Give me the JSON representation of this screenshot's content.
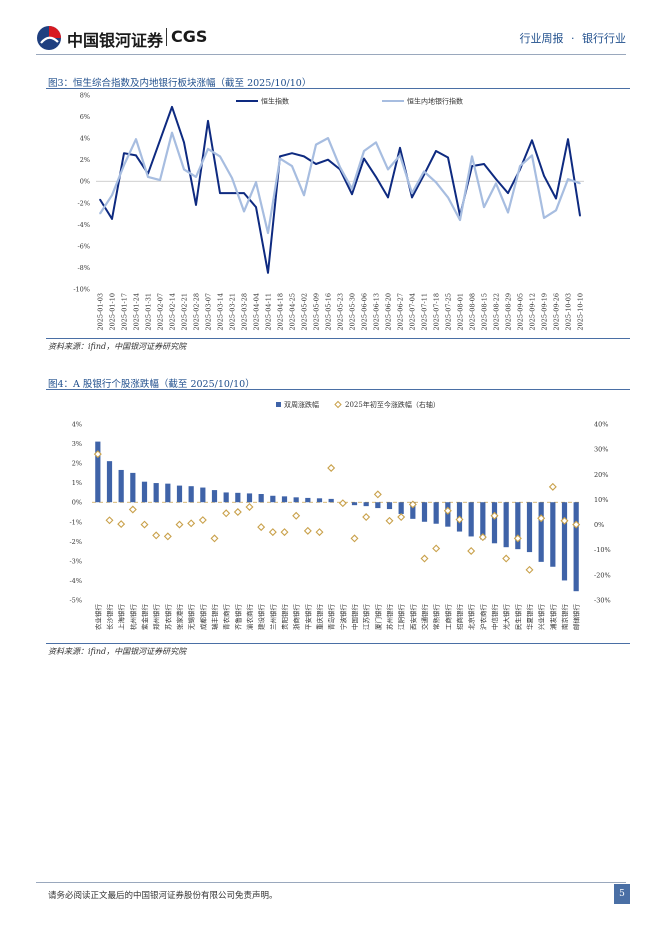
{
  "header": {
    "logo_cn": "中国银河证券",
    "logo_en": "CGS",
    "report_type": "行业周报",
    "separator": "·",
    "industry": "银行行业"
  },
  "figure3": {
    "title": "图3：恒生综合指数及内地银行板块涨幅（截至 2025/10/10）",
    "source": "资料来源：ifind，中国银河证券研究院"
  },
  "figure4": {
    "title": "图4：A 股银行个股涨跌幅（截至 2025/10/10）",
    "source": "资料来源：ifind，中国银河证券研究院"
  },
  "footer": {
    "disclaimer": "请务必阅读正文最后的中国银河证券股份有限公司免责声明。",
    "page_number": "5"
  },
  "colors": {
    "brand_red": "#d71920",
    "brand_blue": "#1f3f7f",
    "series_dark": "#0e2a80",
    "series_light": "#a7bde0",
    "bar_blue": "#3f63a8",
    "diamond": "#c9a14b"
  },
  "chart_data": [
    {
      "type": "line",
      "title": "恒生综合指数及内地银行板块涨幅",
      "ylim": [
        -10,
        8
      ],
      "yticks": [
        "8%",
        "6%",
        "4%",
        "2%",
        "0%",
        "-2%",
        "-4%",
        "-6%",
        "-8%",
        "-10%"
      ],
      "legend_position": "top",
      "x": [
        "2025-01-03",
        "2025-01-10",
        "2025-01-17",
        "2025-01-24",
        "2025-01-31",
        "2025-02-07",
        "2025-02-14",
        "2025-02-21",
        "2025-02-28",
        "2025-03-07",
        "2025-03-14",
        "2025-03-21",
        "2025-03-28",
        "2025-04-04",
        "2025-04-11",
        "2025-04-18",
        "2025-04-25",
        "2025-05-02",
        "2025-05-09",
        "2025-05-16",
        "2025-05-23",
        "2025-05-30",
        "2025-06-06",
        "2025-06-13",
        "2025-06-20",
        "2025-06-27",
        "2025-07-04",
        "2025-07-11",
        "2025-07-18",
        "2025-07-25",
        "2025-08-01",
        "2025-08-08",
        "2025-08-15",
        "2025-08-22",
        "2025-08-29",
        "2025-09-05",
        "2025-09-12",
        "2025-09-19",
        "2025-09-26",
        "2025-10-03",
        "2025-10-10"
      ],
      "x_labels": [
        "2025-01-03",
        "2025-01-10",
        "2025-01-17",
        "2025-01-24",
        "2025-01-31",
        "2025-02-07",
        "2025-02-14",
        "2025-02-21",
        "2025-02-28",
        "2025-03-07",
        "2025-03-14",
        "2025-03-21",
        "2025-03-28",
        "2025-04-04",
        "2025-04-11",
        "2025-04-18",
        "2025-04-25",
        "2025-05-02",
        "2025-05-09",
        "2025-05-16",
        "2025-05-23",
        "2025-05-30",
        "2025-06-06",
        "2025-06-13",
        "2025-06-20",
        "2025-06-27",
        "2025-07-04",
        "2025-07-11",
        "2025-07-18",
        "2025-07-25",
        "2025-08-01",
        "2025-08-08",
        "2025-08-15",
        "2025-08-22",
        "2025-08-29",
        "2025-09-05",
        "2025-09-12",
        "2025-09-19",
        "2025-09-26",
        "2025-10-03",
        "2025-10-10"
      ],
      "series": [
        {
          "name": "恒生指数",
          "values": [
            -1.7,
            -3.5,
            2.6,
            2.4,
            0.7,
            3.8,
            6.9,
            3.6,
            -2.2,
            5.6,
            -1.1,
            -1.1,
            -1.1,
            -2.4,
            -8.5,
            2.3,
            2.6,
            2.3,
            1.6,
            2.0,
            1.1,
            -1.2,
            2.1,
            0.4,
            -1.5,
            3.1,
            -1.5,
            0.6,
            2.8,
            2.2,
            -3.2,
            1.4,
            1.6,
            0.2,
            -1.1,
            1.1,
            3.8,
            0.5,
            -1.6,
            3.9,
            -3.2
          ]
        },
        {
          "name": "恒生内地银行指数",
          "values": [
            -3.0,
            -1.3,
            1.5,
            3.9,
            0.4,
            0.1,
            4.5,
            1.1,
            0.4,
            3.0,
            2.3,
            0.3,
            -2.8,
            -0.1,
            -4.8,
            2.1,
            1.4,
            -1.3,
            3.4,
            4.0,
            1.3,
            -0.7,
            2.8,
            3.6,
            1.1,
            2.4,
            -1.1,
            0.9,
            -0.1,
            -1.5,
            -3.6,
            2.3,
            -2.4,
            -0.2,
            -2.9,
            1.4,
            2.4,
            -3.4,
            -2.7,
            0.2,
            -0.2
          ]
        }
      ]
    },
    {
      "type": "bar",
      "title": "A 股银行个股涨跌幅",
      "categories": [
        "农业银行",
        "长沙银行",
        "上海银行",
        "杭州银行",
        "紫金银行",
        "郑州银行",
        "苏农银行",
        "张家港行",
        "无锡银行",
        "成都银行",
        "瑞丰银行",
        "青农商行",
        "齐鲁银行",
        "渝农商行",
        "建设银行",
        "兰州银行",
        "贵阳银行",
        "浙商银行",
        "平安银行",
        "重庆银行",
        "青岛银行",
        "宁波银行",
        "中国银行",
        "江苏银行",
        "厦门银行",
        "苏州银行",
        "江阴银行",
        "西安银行",
        "交通银行",
        "常熟银行",
        "工商银行",
        "招商银行",
        "北京银行",
        "沪农商行",
        "中信银行",
        "光大银行",
        "民生银行",
        "华夏银行",
        "兴业银行",
        "浦发银行",
        "南京银行",
        "邮储银行"
      ],
      "series": [
        {
          "name": "双周涨跌幅",
          "axis": "left",
          "values": [
            3.1,
            2.1,
            1.65,
            1.5,
            1.05,
            0.98,
            0.95,
            0.85,
            0.82,
            0.75,
            0.62,
            0.5,
            0.48,
            0.45,
            0.42,
            0.33,
            0.3,
            0.25,
            0.22,
            0.2,
            0.17,
            -0.1,
            -0.15,
            -0.2,
            -0.3,
            -0.35,
            -0.6,
            -0.85,
            -1.0,
            -1.1,
            -1.25,
            -1.5,
            -1.75,
            -1.9,
            -2.1,
            -2.3,
            -2.4,
            -2.55,
            -3.05,
            -3.3,
            -4.0,
            -4.55
          ]
        },
        {
          "name": "2025年初至今涨跌幅（右轴）",
          "axis": "right",
          "values": [
            28,
            1.7,
            0.2,
            6,
            0,
            -4.3,
            -4.7,
            0,
            0.5,
            1.8,
            -5.5,
            4.5,
            5,
            7,
            -1,
            -3,
            -3,
            3.5,
            -2.5,
            -3,
            22.5,
            8.5,
            -5.5,
            3,
            12,
            1.5,
            3,
            8,
            -13.5,
            -9.5,
            5.5,
            2,
            -10.5,
            -5,
            3.5,
            -13.5,
            -5.5,
            -18,
            2.5,
            15,
            1.5,
            0
          ]
        }
      ],
      "ylim_left": [
        -5,
        4
      ],
      "ylim_right": [
        -30,
        40
      ],
      "yticks_left": [
        "4%",
        "3%",
        "2%",
        "1%",
        "0%",
        "-1%",
        "-2%",
        "-3%",
        "-4%",
        "-5%"
      ],
      "yticks_right": [
        "40%",
        "30%",
        "20%",
        "10%",
        "0%",
        "-10%",
        "-20%",
        "-30%"
      ],
      "legend_position": "top"
    }
  ]
}
